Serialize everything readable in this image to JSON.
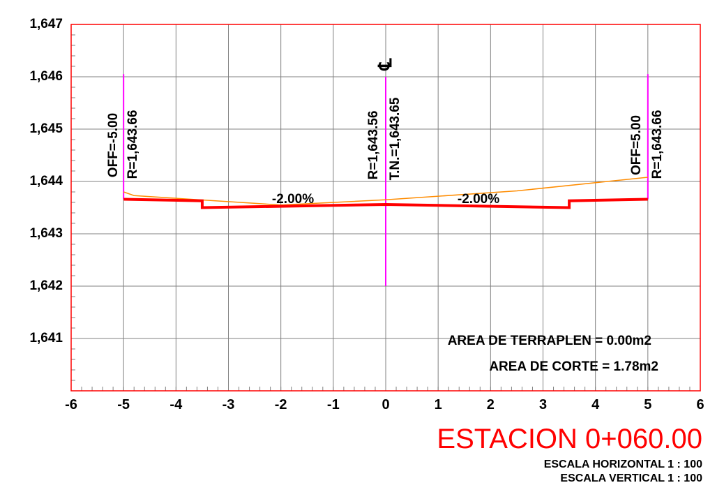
{
  "chart_data": {
    "type": "line",
    "title": "ESTACION 0+060.00",
    "scales": [
      "ESCALA HORIZONTAL 1 : 100",
      "ESCALA VERTICAL 1 : 100"
    ],
    "xlim": [
      -6,
      6
    ],
    "ylim": [
      1640,
      1647
    ],
    "x_ticks": [
      "-6",
      "-5",
      "-4",
      "-3",
      "-2",
      "-1",
      "0",
      "1",
      "2",
      "3",
      "4",
      "5",
      "6"
    ],
    "y_ticks": [
      "1,641",
      "1,642",
      "1,643",
      "1,644",
      "1,645",
      "1,646",
      "1,647"
    ],
    "y_tick_values": [
      1641,
      1642,
      1643,
      1644,
      1645,
      1646,
      1647
    ],
    "grid": true,
    "colors": {
      "frame": "#ff0000",
      "grid": "#808080",
      "design_section": "#ff0000",
      "natural_terrain": "#ff8c00",
      "markers": "#ff00ff",
      "text": "#000000"
    },
    "series": [
      {
        "points": [
          [
            -5,
            1643.66
          ],
          [
            -3.5,
            1643.63
          ],
          [
            -3.5,
            1643.5
          ],
          [
            0,
            1643.56
          ],
          [
            3.5,
            1643.5
          ],
          [
            3.5,
            1643.63
          ],
          [
            5,
            1643.66
          ]
        ]
      },
      {
        "points": [
          [
            -5,
            1643.8
          ],
          [
            -4.8,
            1643.73
          ],
          [
            -2,
            1643.55
          ],
          [
            0,
            1643.65
          ],
          [
            2.5,
            1643.82
          ],
          [
            5,
            1644.08
          ]
        ]
      }
    ],
    "vertical_markers": [
      {
        "x": -5,
        "y_from": 1643.66,
        "y_to": 1646.05
      },
      {
        "x": 0,
        "y_from": 1642.0,
        "y_to": 1646.0
      },
      {
        "x": 5,
        "y_from": 1643.66,
        "y_to": 1646.05
      }
    ],
    "annotations": {
      "left_offset": "OFF=-5.00",
      "left_elev": "R=1,643.66",
      "center_elev": "R=1,643.56",
      "center_tn": "T.N.=1,643.65",
      "right_offset": "OFF=5.00",
      "right_elev": "R=1,643.66",
      "left_slope": "-2.00%",
      "right_slope": "-2.00%",
      "centerline_symbol": "℄",
      "area_fill": "AREA DE TERRAPLEN = 0.00m2",
      "area_cut": "AREA DE CORTE = 1.78m2"
    }
  }
}
